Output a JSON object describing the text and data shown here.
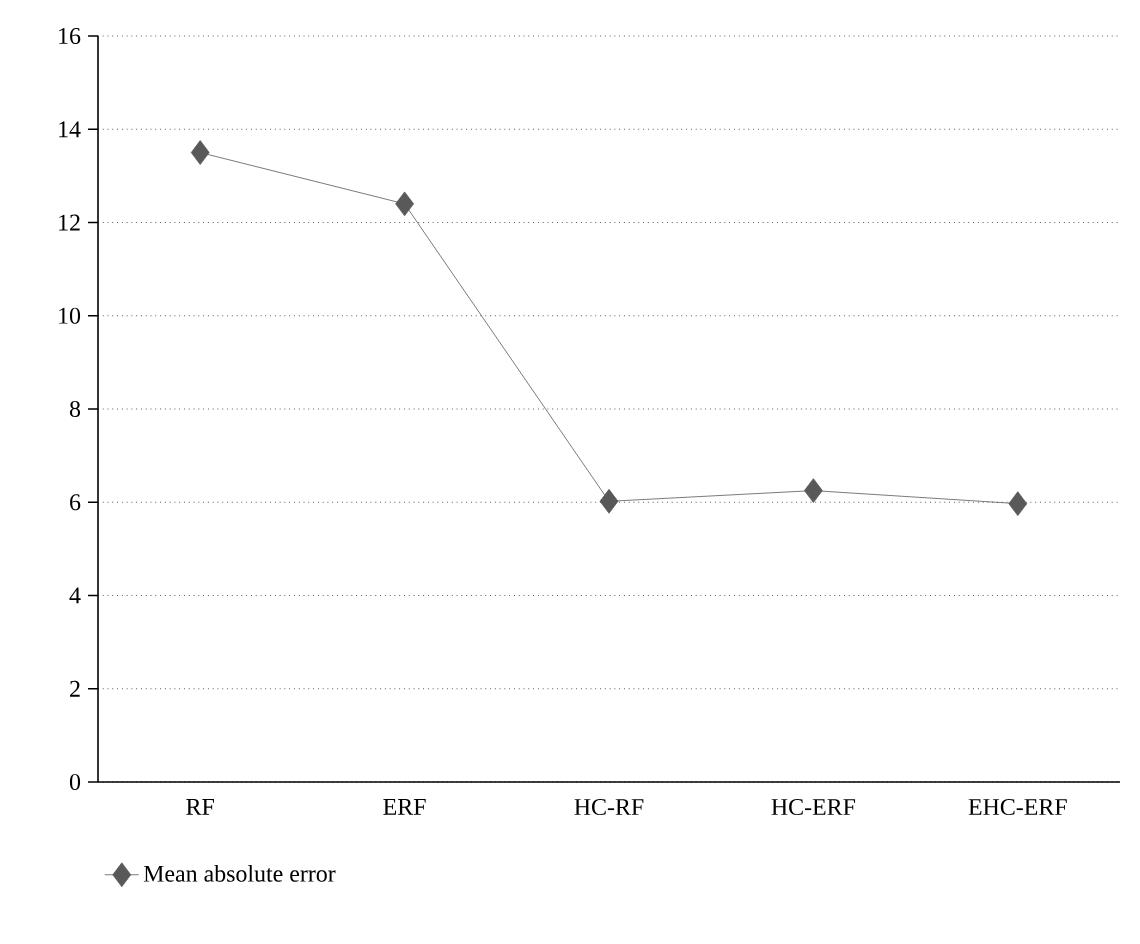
{
  "chart_data": {
    "type": "line",
    "categories": [
      "RF",
      "ERF",
      "HC-RF",
      "HC-ERF",
      "EHC-ERF"
    ],
    "series": [
      {
        "name": "Mean absolute error",
        "color": "#595959",
        "values": [
          13.5,
          12.4,
          6.02,
          6.25,
          5.97
        ]
      }
    ],
    "ylim": [
      0,
      16
    ],
    "yticks": [
      0,
      2,
      4,
      6,
      8,
      10,
      12,
      14,
      16
    ],
    "grid": "y",
    "legend": "bottom left",
    "marker": "diamond",
    "line_style": "solid"
  }
}
